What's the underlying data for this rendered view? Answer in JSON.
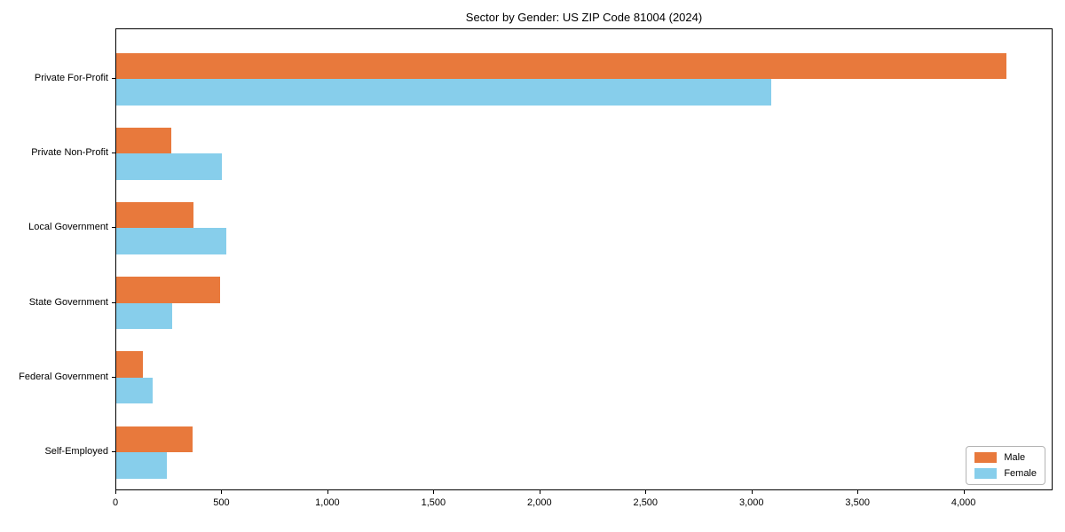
{
  "chart_data": {
    "type": "bar",
    "orientation": "horizontal",
    "title": "Sector by Gender: US ZIP Code 81004 (2024)",
    "categories": [
      "Private For-Profit",
      "Private Non-Profit",
      "Local Government",
      "State Government",
      "Federal Government",
      "Self-Employed"
    ],
    "series": [
      {
        "name": "Male",
        "color": "#e8793c",
        "values": [
          4200,
          260,
          365,
          490,
          125,
          360
        ]
      },
      {
        "name": "Female",
        "color": "#87ceeb",
        "values": [
          3090,
          500,
          520,
          265,
          170,
          240
        ]
      }
    ],
    "xlabel": "",
    "ylabel": "",
    "xlim": [
      0,
      4420
    ],
    "xticks": [
      0,
      500,
      1000,
      1500,
      2000,
      2500,
      3000,
      3500,
      4000
    ],
    "xtick_labels": [
      "0",
      "500",
      "1,000",
      "1,500",
      "2,000",
      "2,500",
      "3,000",
      "3,500",
      "4,000"
    ],
    "grid": false,
    "legend_position": "lower right",
    "spine_color": "#000000",
    "background_color": "#ffffff"
  }
}
